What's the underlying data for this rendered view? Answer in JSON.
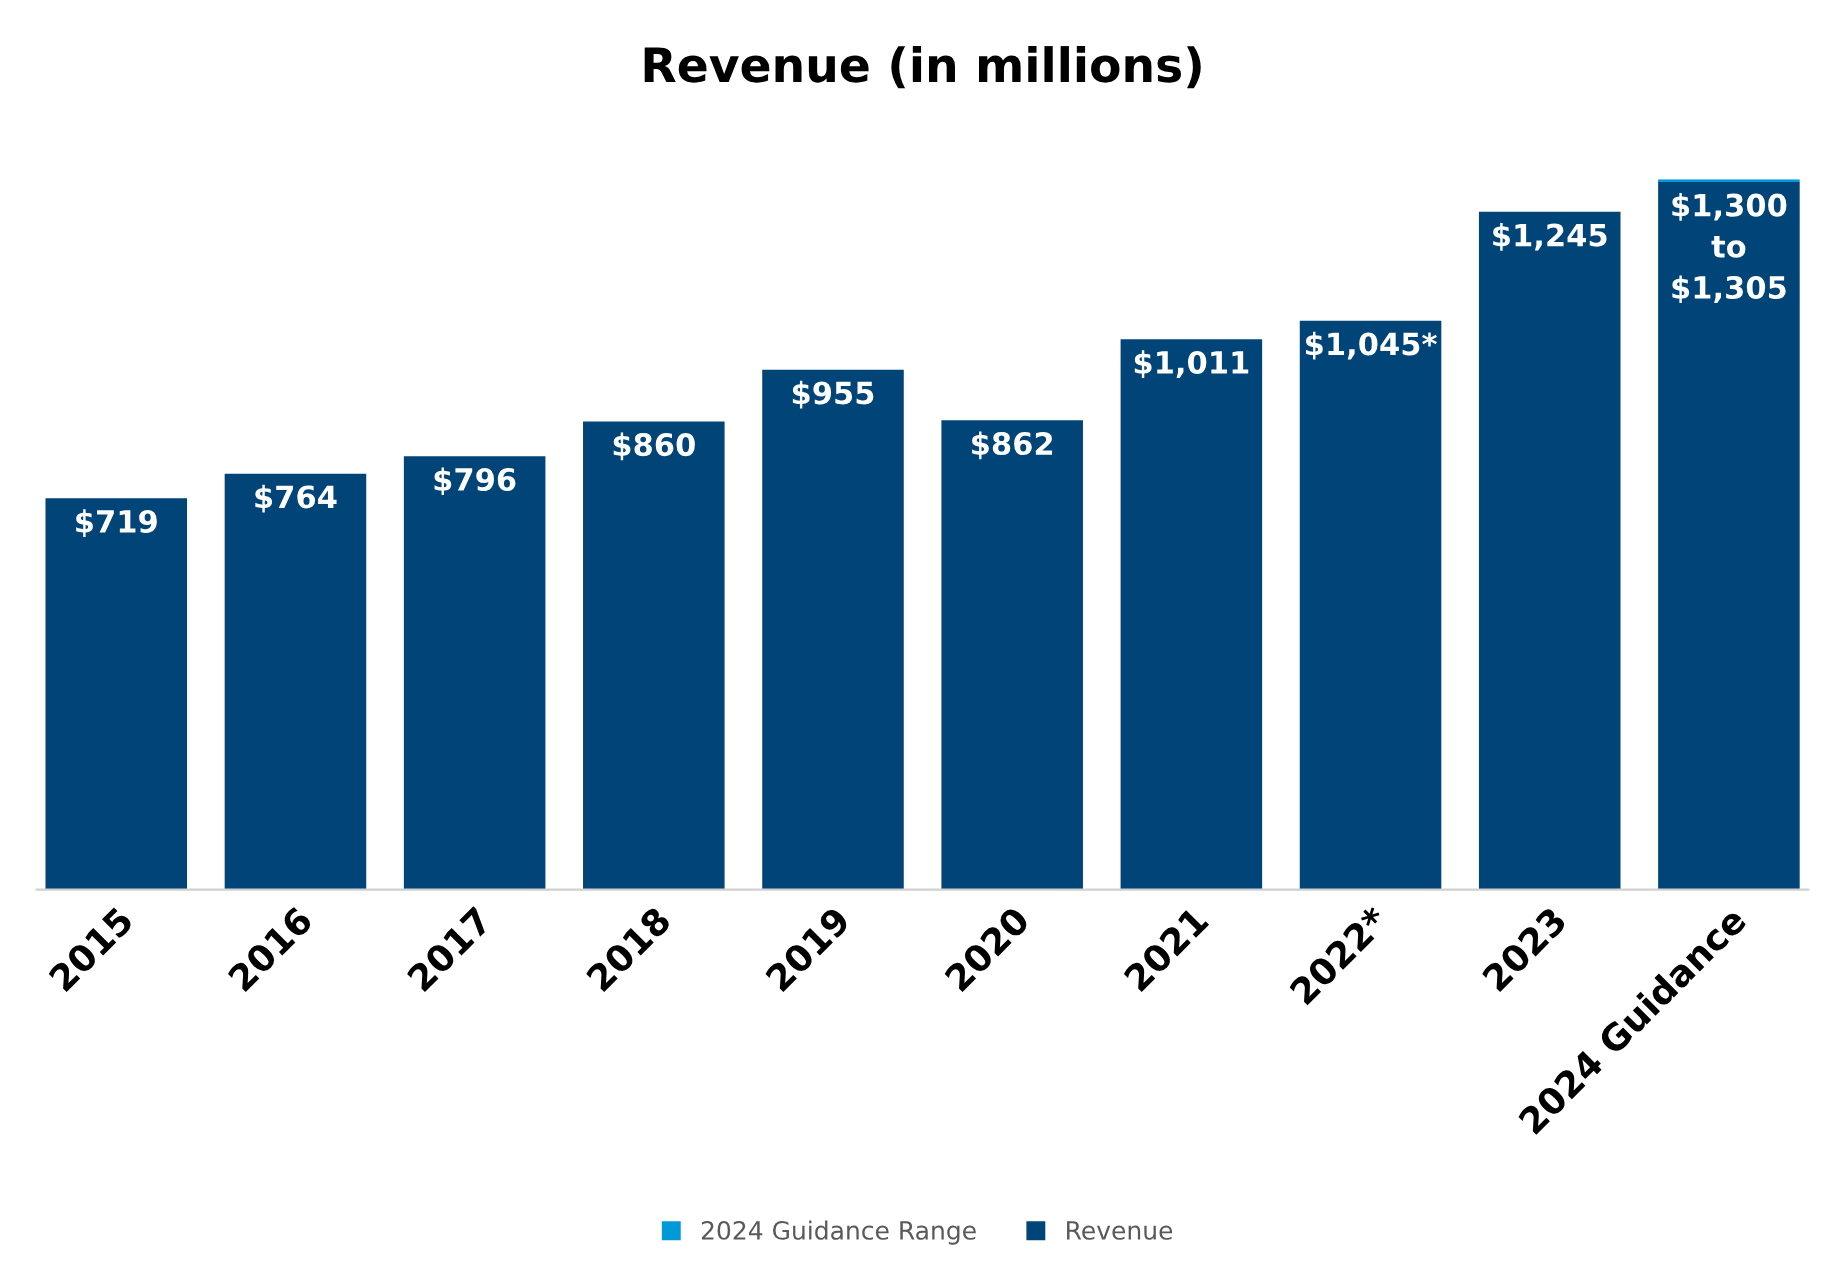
{
  "chart_data": {
    "type": "bar",
    "title": "Revenue (in millions)",
    "categories": [
      "2015",
      "2016",
      "2017",
      "2018",
      "2019",
      "2020",
      "2021",
      "2022*",
      "2023",
      "2024 Guidance"
    ],
    "stacked": true,
    "legend": "bottom",
    "grid": false,
    "series": [
      {
        "name": "Revenue",
        "color": "#004478",
        "values": [
          719,
          764,
          796,
          860,
          955,
          862,
          1011,
          1045,
          1245,
          1300
        ],
        "value_labels": [
          "$719",
          "$764",
          "$796",
          "$860",
          "$955",
          "$862",
          "$1,011",
          "$1,045*",
          "$1,245",
          "$1,300\nto\n$1,305"
        ]
      },
      {
        "name": "2024 Guidance Range",
        "color": "#0099d8",
        "values": [
          null,
          null,
          null,
          null,
          null,
          null,
          null,
          null,
          null,
          5
        ]
      }
    ]
  }
}
